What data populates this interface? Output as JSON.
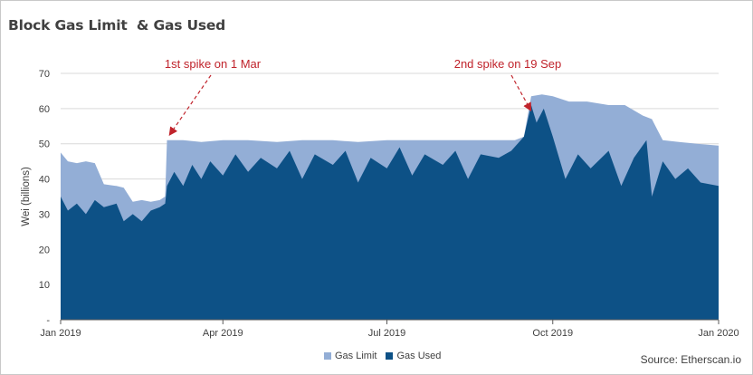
{
  "title": "Block Gas Limit  & Gas Used",
  "source": "Source: Etherscan.io",
  "colors": {
    "gas_limit": "#93aed6",
    "gas_used": "#0d5186",
    "annotation": "#c0232b",
    "grid": "#d9d9d9",
    "axis": "#595959"
  },
  "chart_data": {
    "type": "area",
    "title": "Block Gas Limit  & Gas Used",
    "xlabel": "",
    "ylabel": "Wei (billions)",
    "xlim": [
      "2019-01-01",
      "2020-01-01"
    ],
    "ylim": [
      0,
      70
    ],
    "y_ticks": [
      0,
      10,
      20,
      30,
      40,
      50,
      60,
      70
    ],
    "y_tick_labels": [
      "-",
      "10",
      "20",
      "30",
      "40",
      "50",
      "60",
      "70"
    ],
    "x_ticks": [
      "2019-01-01",
      "2019-04-01",
      "2019-07-01",
      "2019-10-01",
      "2020-01-01"
    ],
    "x_tick_labels": [
      "Jan 2019",
      "Apr 2019",
      "Jul 2019",
      "Oct 2019",
      "Jan 2020"
    ],
    "grid": "horizontal",
    "legend_position": "bottom",
    "series": [
      {
        "name": "Gas Limit",
        "x": [
          "2019-01-01",
          "2019-01-05",
          "2019-01-10",
          "2019-01-15",
          "2019-01-20",
          "2019-01-25",
          "2019-02-01",
          "2019-02-05",
          "2019-02-10",
          "2019-02-15",
          "2019-02-20",
          "2019-02-25",
          "2019-02-28",
          "2019-03-01",
          "2019-03-10",
          "2019-03-20",
          "2019-04-01",
          "2019-04-15",
          "2019-05-01",
          "2019-05-15",
          "2019-06-01",
          "2019-06-15",
          "2019-07-01",
          "2019-07-15",
          "2019-08-01",
          "2019-08-15",
          "2019-09-01",
          "2019-09-10",
          "2019-09-15",
          "2019-09-19",
          "2019-09-25",
          "2019-10-01",
          "2019-10-10",
          "2019-10-20",
          "2019-11-01",
          "2019-11-10",
          "2019-11-20",
          "2019-11-25",
          "2019-11-28",
          "2019-12-01",
          "2019-12-10",
          "2019-12-20",
          "2020-01-01"
        ],
        "values": [
          47.5,
          45,
          44.5,
          45,
          44.5,
          38.5,
          38,
          37.5,
          33.5,
          34,
          33.5,
          34,
          35,
          51,
          51,
          50.5,
          51,
          51,
          50.5,
          51,
          51,
          50.5,
          51,
          51,
          51,
          51,
          51,
          51,
          52,
          63.5,
          64,
          63.5,
          62,
          62,
          61,
          61,
          58,
          57,
          54,
          51,
          50.5,
          50,
          49.5
        ]
      },
      {
        "name": "Gas Used",
        "x": [
          "2019-01-01",
          "2019-01-05",
          "2019-01-10",
          "2019-01-15",
          "2019-01-20",
          "2019-01-25",
          "2019-02-01",
          "2019-02-05",
          "2019-02-10",
          "2019-02-15",
          "2019-02-20",
          "2019-02-25",
          "2019-02-28",
          "2019-03-01",
          "2019-03-05",
          "2019-03-10",
          "2019-03-15",
          "2019-03-20",
          "2019-03-25",
          "2019-04-01",
          "2019-04-08",
          "2019-04-15",
          "2019-04-22",
          "2019-05-01",
          "2019-05-08",
          "2019-05-15",
          "2019-05-22",
          "2019-06-01",
          "2019-06-08",
          "2019-06-15",
          "2019-06-22",
          "2019-07-01",
          "2019-07-08",
          "2019-07-15",
          "2019-07-22",
          "2019-08-01",
          "2019-08-08",
          "2019-08-15",
          "2019-08-22",
          "2019-09-01",
          "2019-09-08",
          "2019-09-15",
          "2019-09-19",
          "2019-09-22",
          "2019-09-26",
          "2019-10-01",
          "2019-10-08",
          "2019-10-15",
          "2019-10-22",
          "2019-11-01",
          "2019-11-08",
          "2019-11-15",
          "2019-11-22",
          "2019-11-25",
          "2019-12-01",
          "2019-12-08",
          "2019-12-15",
          "2019-12-22",
          "2020-01-01"
        ],
        "values": [
          35,
          31,
          33,
          30,
          34,
          32,
          33,
          28,
          30,
          28,
          31,
          32,
          33,
          38,
          42,
          38,
          44,
          40,
          45,
          41,
          47,
          42,
          46,
          43,
          48,
          40,
          47,
          44,
          48,
          39,
          46,
          43,
          49,
          41,
          47,
          44,
          48,
          40,
          47,
          46,
          48,
          52,
          61,
          56,
          60,
          52,
          40,
          47,
          43,
          48,
          38,
          46,
          51,
          35,
          45,
          40,
          43,
          39,
          38
        ]
      }
    ],
    "annotations": [
      {
        "text": "1st spike on 1 Mar",
        "x": "2019-03-01",
        "y": 51
      },
      {
        "text": "2nd spike on 19 Sep",
        "x": "2019-09-19",
        "y": 61
      }
    ]
  }
}
